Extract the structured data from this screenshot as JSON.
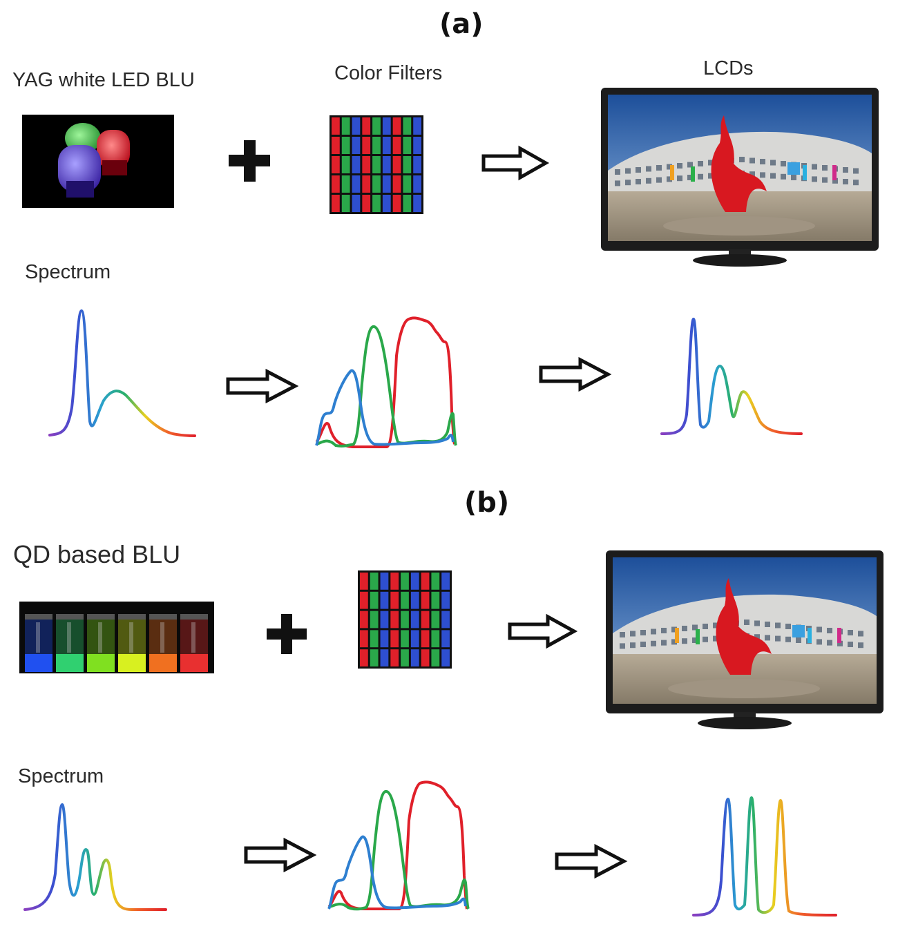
{
  "panels": [
    {
      "id": "a",
      "label": "(a)",
      "source_label": "YAG white LED BLU",
      "filter_label": "Color Filters",
      "display_label": "LCDs",
      "spectrum_label": "Spectrum"
    },
    {
      "id": "b",
      "label": "(b)",
      "source_label": "QD based BLU",
      "filter_label": "",
      "display_label": "",
      "spectrum_label": "Spectrum"
    }
  ],
  "colors": {
    "red": "#e0202a",
    "green": "#2aa84a",
    "blue": "#2e7fd0",
    "violet": "#8a3fc0",
    "yellow": "#e8d020",
    "arrow_stroke": "#111111",
    "monitor_bezel": "#1c1c1c"
  },
  "icons": {
    "plus": "plus-icon",
    "arrow": "hollow-right-arrow-icon"
  }
}
